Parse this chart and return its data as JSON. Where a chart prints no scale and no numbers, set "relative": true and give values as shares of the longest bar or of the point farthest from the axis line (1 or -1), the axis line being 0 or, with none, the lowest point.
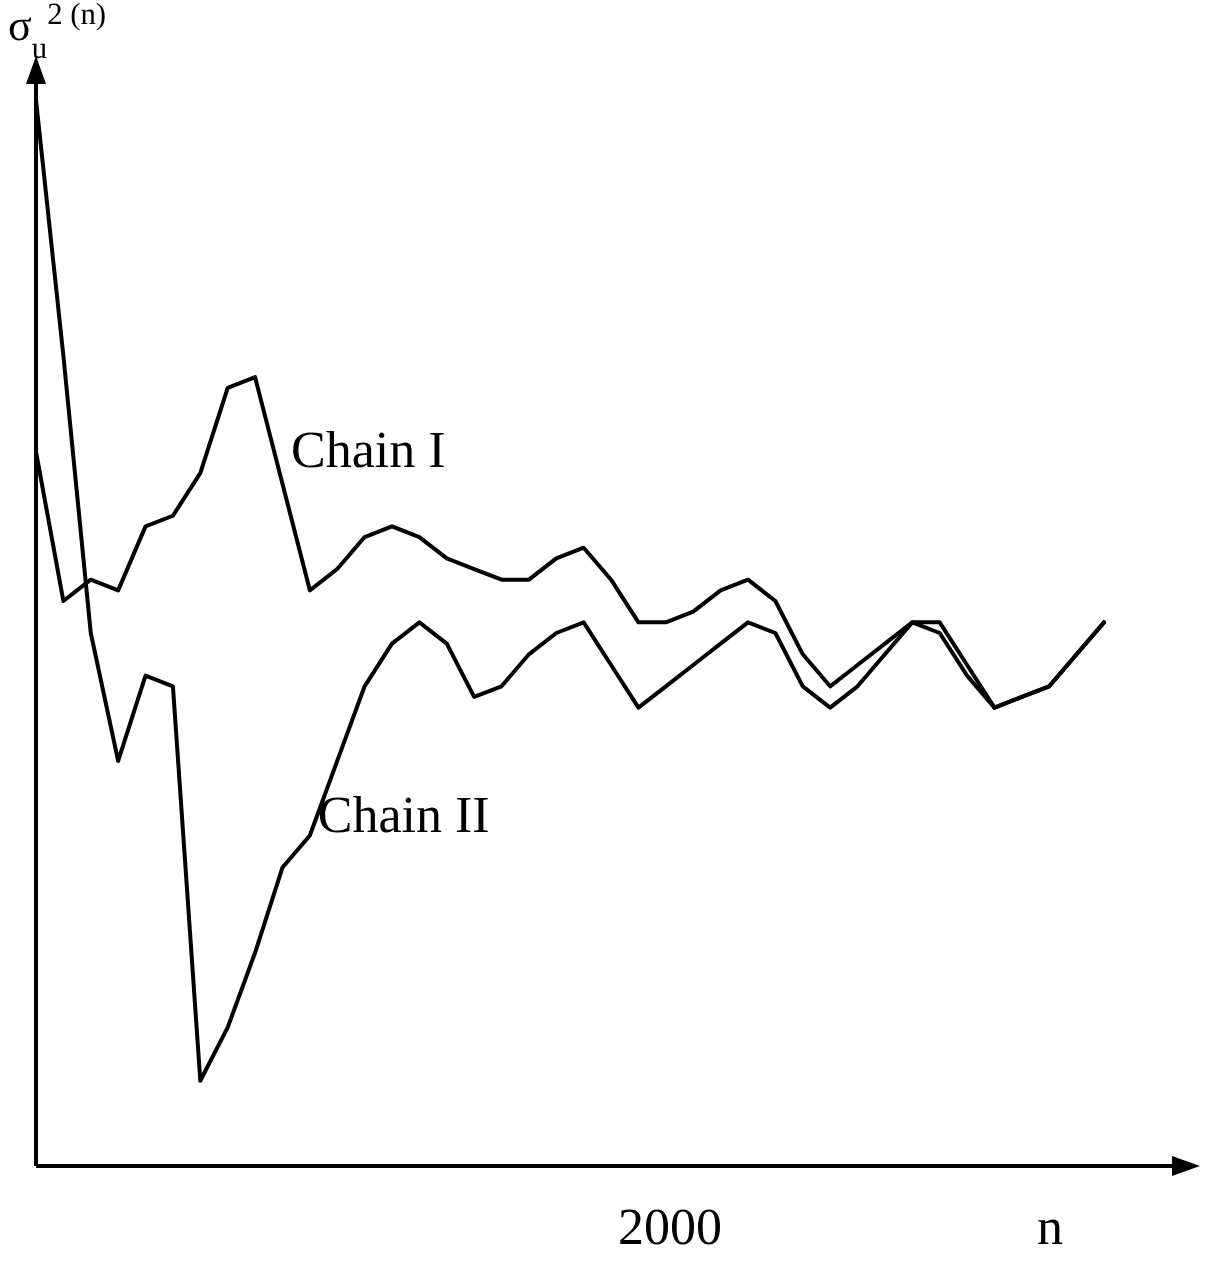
{
  "chart_data": {
    "type": "line",
    "relative": true,
    "xlabel": "n",
    "ylabel": "σ$_{u}$$^{2 (n)}$",
    "annotations": [
      "2000"
    ],
    "marker": "none",
    "line_style": "solid",
    "categories": [
      null,
      null,
      null,
      null,
      null,
      null,
      null,
      null,
      null,
      null,
      null,
      null,
      null,
      null,
      null,
      null,
      null,
      null,
      null,
      null,
      null,
      null,
      null,
      null,
      null,
      null,
      null,
      null,
      null,
      null,
      null,
      null,
      null,
      null,
      null,
      null,
      null,
      null,
      null,
      null
    ],
    "series": [
      {
        "name": "Chain I",
        "color": "#000000",
        "values": [
          0.67,
          0.53,
          0.55,
          0.54,
          0.6,
          0.61,
          0.65,
          0.73,
          0.74,
          0.64,
          0.54,
          0.56,
          0.59,
          0.6,
          0.59,
          0.57,
          0.56,
          0.55,
          0.55,
          0.57,
          0.58,
          0.55,
          0.51,
          0.51,
          0.52,
          0.54,
          0.55,
          0.53,
          0.48,
          0.45,
          0.47,
          0.49,
          0.51,
          0.51,
          0.47,
          0.43,
          0.44,
          0.45,
          0.48,
          0.51
        ]
      },
      {
        "name": "Chain II",
        "color": "#000000",
        "values": [
          1,
          0.76,
          0.5,
          0.38,
          0.46,
          0.45,
          0.08,
          0.13,
          0.2,
          0.28,
          0.31,
          0.38,
          0.45,
          0.49,
          0.51,
          0.49,
          0.44,
          0.45,
          0.48,
          0.5,
          0.51,
          0.47,
          0.43,
          0.45,
          0.47,
          0.49,
          0.51,
          0.5,
          0.45,
          0.43,
          0.45,
          0.48,
          0.51,
          0.5,
          0.46,
          0.43,
          0.44,
          0.45,
          0.48,
          0.51
        ]
      }
    ]
  }
}
